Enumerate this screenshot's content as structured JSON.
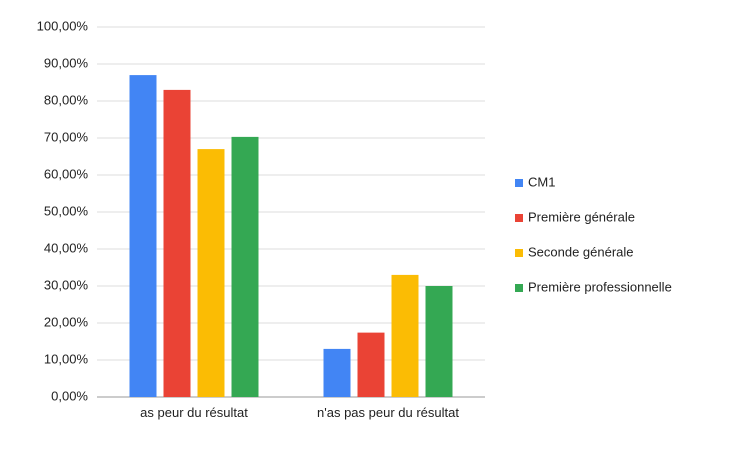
{
  "chart_data": {
    "type": "bar",
    "categories": [
      "as peur du résultat",
      "n'as pas peur du résultat"
    ],
    "series": [
      {
        "name": "CM1",
        "color": "#4285f4",
        "values": [
          87,
          13
        ]
      },
      {
        "name": "Première générale",
        "color": "#ea4335",
        "values": [
          83,
          17.4
        ]
      },
      {
        "name": "Seconde générale",
        "color": "#fbbc04",
        "values": [
          67,
          33
        ]
      },
      {
        "name": "Première professionnelle",
        "color": "#34a853",
        "values": [
          70.3,
          30
        ]
      }
    ],
    "ylim": [
      0,
      100
    ],
    "yticks": [
      {
        "value": 0,
        "label": "0,00%"
      },
      {
        "value": 10,
        "label": "10,00%"
      },
      {
        "value": 20,
        "label": "20,00%"
      },
      {
        "value": 30,
        "label": "30,00%"
      },
      {
        "value": 40,
        "label": "40,00%"
      },
      {
        "value": 50,
        "label": "50,00%"
      },
      {
        "value": 60,
        "label": "60,00%"
      },
      {
        "value": 70,
        "label": "70,00%"
      },
      {
        "value": 80,
        "label": "80,00%"
      },
      {
        "value": 90,
        "label": "90,00%"
      },
      {
        "value": 100,
        "label": "100,00%"
      }
    ],
    "grid": true,
    "legend": "right"
  }
}
